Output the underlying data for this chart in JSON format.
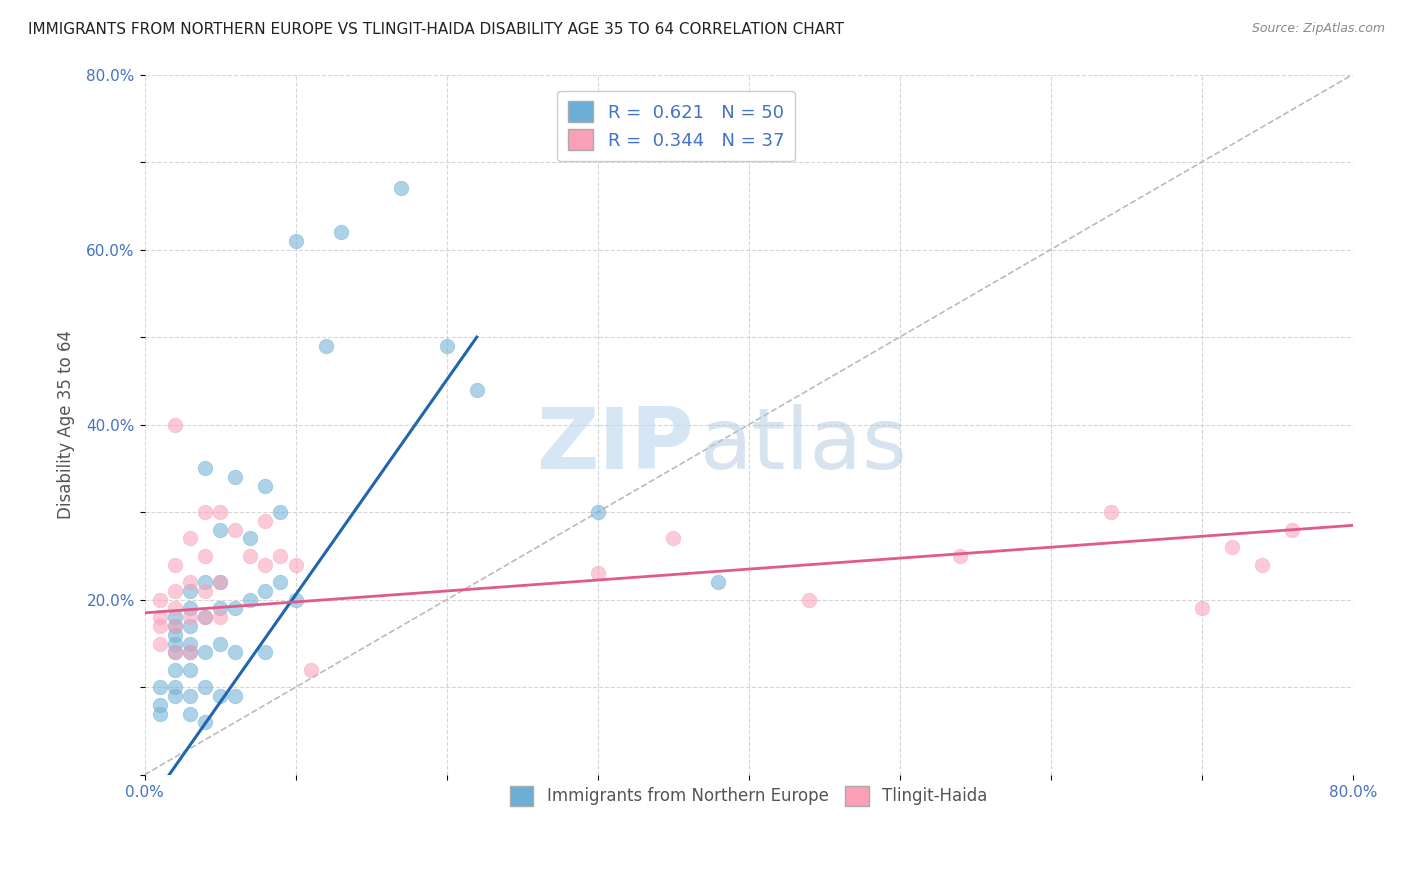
{
  "title": "IMMIGRANTS FROM NORTHERN EUROPE VS TLINGIT-HAIDA DISABILITY AGE 35 TO 64 CORRELATION CHART",
  "source": "Source: ZipAtlas.com",
  "ylabel": "Disability Age 35 to 64",
  "xlim": [
    0.0,
    0.8
  ],
  "ylim": [
    0.0,
    0.8
  ],
  "xticks": [
    0.0,
    0.1,
    0.2,
    0.3,
    0.4,
    0.5,
    0.6,
    0.7,
    0.8
  ],
  "xticklabels": [
    "0.0%",
    "",
    "",
    "",
    "",
    "",
    "",
    "",
    "80.0%"
  ],
  "yticks": [
    0.0,
    0.1,
    0.2,
    0.3,
    0.4,
    0.5,
    0.6,
    0.7,
    0.8
  ],
  "yticklabels": [
    "",
    "",
    "20.0%",
    "",
    "40.0%",
    "",
    "60.0%",
    "",
    "80.0%"
  ],
  "blue_R": "0.621",
  "blue_N": "50",
  "pink_R": "0.344",
  "pink_N": "37",
  "blue_color": "#6baed6",
  "pink_color": "#fa9fb5",
  "blue_line_color": "#2166ac",
  "pink_line_color": "#e05a8a",
  "diagonal_color": "#bbbbbb",
  "watermark_zip": "ZIP",
  "watermark_atlas": "atlas",
  "blue_scatter_x": [
    0.01,
    0.01,
    0.01,
    0.02,
    0.02,
    0.02,
    0.02,
    0.02,
    0.02,
    0.02,
    0.02,
    0.03,
    0.03,
    0.03,
    0.03,
    0.03,
    0.03,
    0.03,
    0.03,
    0.04,
    0.04,
    0.04,
    0.04,
    0.04,
    0.04,
    0.05,
    0.05,
    0.05,
    0.05,
    0.05,
    0.06,
    0.06,
    0.06,
    0.06,
    0.07,
    0.07,
    0.08,
    0.08,
    0.08,
    0.09,
    0.09,
    0.1,
    0.1,
    0.12,
    0.13,
    0.17,
    0.2,
    0.22,
    0.3,
    0.38
  ],
  "blue_scatter_y": [
    0.07,
    0.08,
    0.1,
    0.09,
    0.1,
    0.12,
    0.14,
    0.15,
    0.16,
    0.17,
    0.18,
    0.07,
    0.09,
    0.12,
    0.14,
    0.15,
    0.17,
    0.19,
    0.21,
    0.06,
    0.1,
    0.14,
    0.18,
    0.22,
    0.35,
    0.09,
    0.15,
    0.19,
    0.22,
    0.28,
    0.09,
    0.14,
    0.19,
    0.34,
    0.2,
    0.27,
    0.14,
    0.21,
    0.33,
    0.22,
    0.3,
    0.2,
    0.61,
    0.49,
    0.62,
    0.67,
    0.49,
    0.44,
    0.3,
    0.22
  ],
  "pink_scatter_x": [
    0.01,
    0.01,
    0.01,
    0.01,
    0.02,
    0.02,
    0.02,
    0.02,
    0.02,
    0.02,
    0.03,
    0.03,
    0.03,
    0.03,
    0.04,
    0.04,
    0.04,
    0.04,
    0.05,
    0.05,
    0.05,
    0.06,
    0.07,
    0.08,
    0.08,
    0.09,
    0.1,
    0.11,
    0.3,
    0.35,
    0.44,
    0.54,
    0.64,
    0.7,
    0.72,
    0.74,
    0.76
  ],
  "pink_scatter_y": [
    0.15,
    0.17,
    0.18,
    0.2,
    0.14,
    0.17,
    0.19,
    0.21,
    0.24,
    0.4,
    0.14,
    0.18,
    0.22,
    0.27,
    0.18,
    0.21,
    0.25,
    0.3,
    0.18,
    0.22,
    0.3,
    0.28,
    0.25,
    0.24,
    0.29,
    0.25,
    0.24,
    0.12,
    0.23,
    0.27,
    0.2,
    0.25,
    0.3,
    0.19,
    0.26,
    0.24,
    0.28
  ],
  "blue_line_x": [
    0.0,
    0.22
  ],
  "blue_line_y": [
    -0.04,
    0.5
  ],
  "pink_line_x": [
    0.0,
    0.8
  ],
  "pink_line_y": [
    0.185,
    0.285
  ],
  "diag_line_x": [
    0.0,
    0.8
  ],
  "diag_line_y": [
    0.0,
    0.8
  ],
  "legend_label_blue": "Immigrants from Northern Europe",
  "legend_label_pink": "Tlingit-Haida"
}
